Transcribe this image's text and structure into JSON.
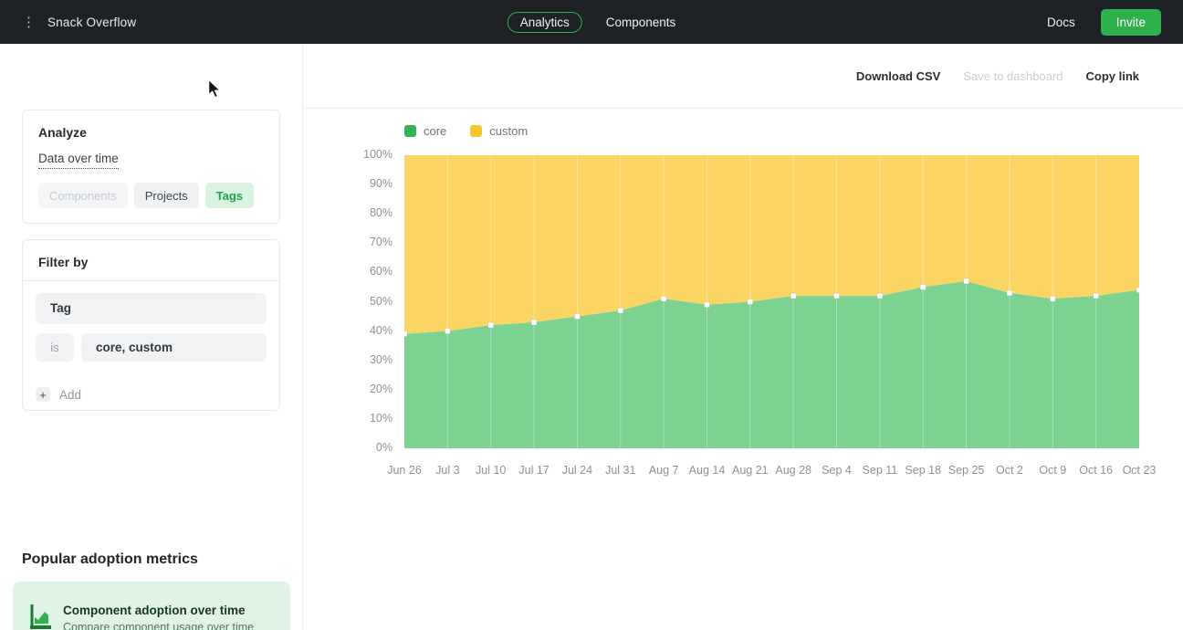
{
  "navbar": {
    "app_name": "Snack Overflow",
    "tabs": [
      {
        "label": "Analytics",
        "active": true
      },
      {
        "label": "Components",
        "active": false
      }
    ],
    "docs_label": "Docs",
    "invite_label": "Invite"
  },
  "toolbar": {
    "download_csv": "Download CSV",
    "save_to_dashboard": "Save to dashboard",
    "copy_link": "Copy link"
  },
  "sidebar": {
    "analyze": {
      "title": "Analyze",
      "metric": "Data over time",
      "options": [
        {
          "label": "Components",
          "state": "disabled"
        },
        {
          "label": "Projects",
          "state": "default"
        },
        {
          "label": "Tags",
          "state": "active"
        }
      ]
    },
    "filter": {
      "title": "Filter by",
      "field": "Tag",
      "operator": "is",
      "value": "core, custom",
      "add_label": "Add"
    },
    "metrics": {
      "title": "Popular adoption metrics",
      "cards": [
        {
          "title": "Component adoption over time",
          "subtitle": "Compare component usage over time"
        }
      ]
    }
  },
  "icons": {
    "kebab_menu": "⋮",
    "plus": "+"
  },
  "colors": {
    "accent_green": "#2eb14c",
    "navbar_bg": "#1e2126",
    "tags_active_bg": "#d9f3e0",
    "tags_active_text": "#1ea54a",
    "metric_card_bg": "#e0f4e5"
  },
  "chart_data": {
    "type": "area",
    "stacked": true,
    "title": "",
    "xlabel": "",
    "ylabel": "",
    "ylabel_format": "percent",
    "ylim": [
      0,
      100
    ],
    "yticks": [
      0,
      10,
      20,
      30,
      40,
      50,
      60,
      70,
      80,
      90,
      100
    ],
    "grid": "vertical-light",
    "legend_position": "top-left",
    "marker": "white-square",
    "x": [
      "Jun 26",
      "Jul 3",
      "Jul 10",
      "Jul 17",
      "Jul 24",
      "Jul 31",
      "Aug 7",
      "Aug 14",
      "Aug 21",
      "Aug 28",
      "Sep 4",
      "Sep 11",
      "Sep 18",
      "Sep 25",
      "Oct 2",
      "Oct 9",
      "Oct 16",
      "Oct 23"
    ],
    "series": [
      {
        "name": "core",
        "fill": "#7cd291",
        "swatch": "#34b457",
        "values": [
          39,
          40,
          42,
          43,
          45,
          47,
          51,
          49,
          50,
          52,
          52,
          52,
          55,
          57,
          53,
          51,
          52,
          54
        ]
      },
      {
        "name": "custom",
        "fill": "#fbd563",
        "swatch": "#f6c72b",
        "values": [
          61,
          60,
          58,
          57,
          55,
          53,
          49,
          51,
          50,
          48,
          48,
          48,
          45,
          43,
          47,
          49,
          48,
          46
        ]
      }
    ]
  }
}
